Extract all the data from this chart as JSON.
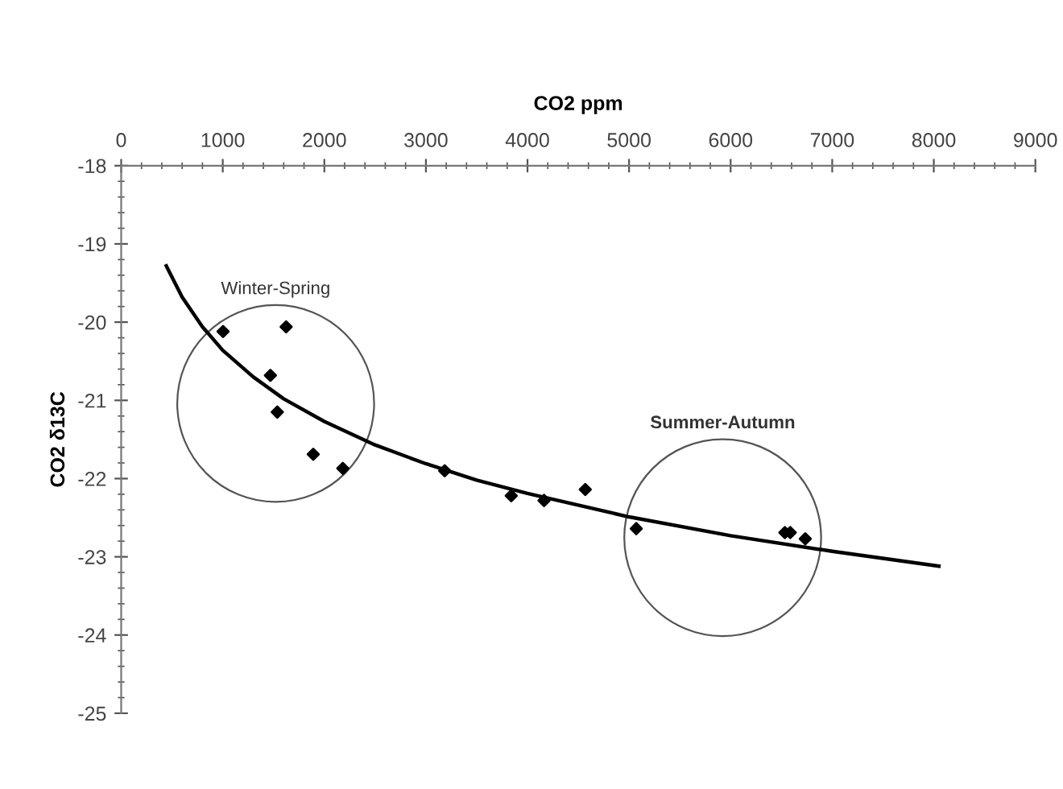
{
  "chart_data": {
    "type": "scatter",
    "xlabel": "CO2 ppm",
    "ylabel": "CO2 δ13C",
    "xlim": [
      0,
      9000
    ],
    "xticks": [
      0,
      1000,
      2000,
      3000,
      4000,
      5000,
      6000,
      7000,
      8000,
      9000
    ],
    "ylim": [
      -25,
      -18
    ],
    "yticks": [
      -25,
      -24,
      -23,
      -22,
      -21,
      -20,
      -19,
      -18
    ],
    "grid": false,
    "legend": false,
    "marker": "diamond",
    "series": [
      {
        "color": "#000000",
        "x": [
          1003,
          1624,
          1469,
          1537,
          1891,
          2182,
          3185,
          3840,
          4163,
          4569,
          5071,
          6534,
          6587,
          6735
        ],
        "values": [
          -20.12,
          -20.06,
          -20.68,
          -21.15,
          -21.69,
          -21.87,
          -21.9,
          -22.22,
          -22.28,
          -22.14,
          -22.64,
          -22.69,
          -22.69,
          -22.77
        ]
      },
      {
        "type": "line",
        "color": "#000000",
        "marker": "none",
        "line_style": "solid",
        "x": [
          444,
          600,
          800,
          1000,
          1300,
          1600,
          2000,
          2500,
          3000,
          3500,
          4000,
          5000,
          6000,
          7000,
          8050
        ],
        "values": [
          -19.28,
          -19.68,
          -20.06,
          -20.36,
          -20.7,
          -20.98,
          -21.27,
          -21.57,
          -21.81,
          -22.02,
          -22.19,
          -22.49,
          -22.73,
          -22.93,
          -23.12
        ]
      }
    ],
    "annotations": [
      "Winter-Spring",
      "Summer-Autumn"
    ]
  }
}
